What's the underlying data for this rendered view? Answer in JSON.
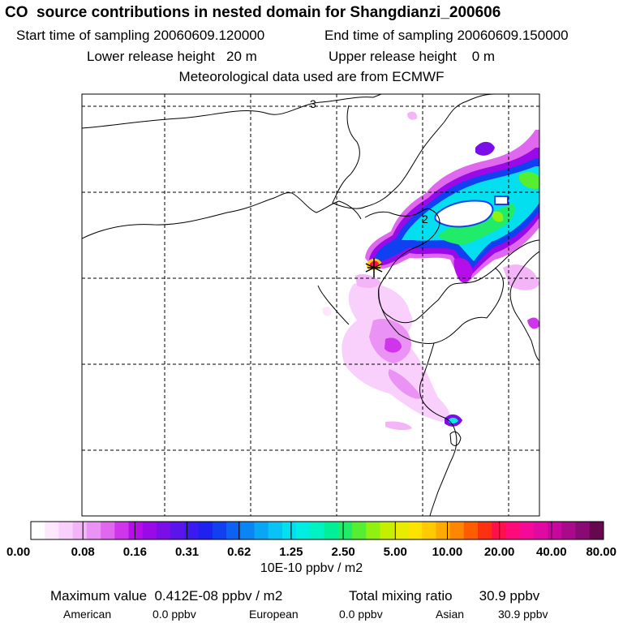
{
  "header": {
    "title": "CO  source contributions in nested domain for Shangdianzi_200606",
    "start_time": "Start time of sampling 20060609.120000",
    "end_time": "End time of sampling 20060609.150000",
    "lower_release": "Lower release height   20 m",
    "upper_release": "Upper release height    0 m",
    "met_data": "Meteorological data used are from ECMWF"
  },
  "chart_data": {
    "type": "heatmap",
    "title": "CO  source contributions in nested domain for Shangdianzi_200606",
    "colorbar": {
      "tick_labels": [
        "0.00",
        "0.08",
        "0.16",
        "0.31",
        "0.62",
        "1.25",
        "2.50",
        "5.00",
        "10.00",
        "20.00",
        "40.00",
        "80.00"
      ],
      "unit": "10E-10 ppbv / m2",
      "colors": [
        "#ffffff",
        "#fde8fd",
        "#f9d0fb",
        "#f3b5f8",
        "#eb93f4",
        "#df68ee",
        "#cf35ea",
        "#b50ee8",
        "#9a0ae8",
        "#7a0de8",
        "#5a14ec",
        "#3a1af0",
        "#1e22ee",
        "#1040f0",
        "#0e62f2",
        "#0a85f4",
        "#0aa6f6",
        "#08c4f4",
        "#04dff0",
        "#00eee2",
        "#00f2c0",
        "#00f098",
        "#20ec6a",
        "#55ee30",
        "#90f010",
        "#c4f000",
        "#e8ec00",
        "#fde400",
        "#ffca00",
        "#ffaa00",
        "#ff8600",
        "#ff5c00",
        "#ff2f12",
        "#ff104a",
        "#ff0a78",
        "#f40a96",
        "#e00aa2",
        "#c8089c",
        "#a80a8a",
        "#880a72",
        "#66084e"
      ]
    },
    "receptor_marker": "star",
    "grid": true,
    "high_contribution_regions": [
      "plume northeast of receptor",
      "receptor site",
      "diffuse region south of receptor",
      "small spot southeast"
    ]
  },
  "footer": {
    "max_value": "Maximum value  0.412E-08 ppbv / m2",
    "total_mixing": "Total mixing ratio       30.9 ppbv",
    "regions": [
      {
        "name": "American",
        "value": "0.0 ppbv"
      },
      {
        "name": "European",
        "value": "0.0 ppbv"
      },
      {
        "name": "Asian",
        "value": "30.9 ppbv"
      }
    ]
  }
}
